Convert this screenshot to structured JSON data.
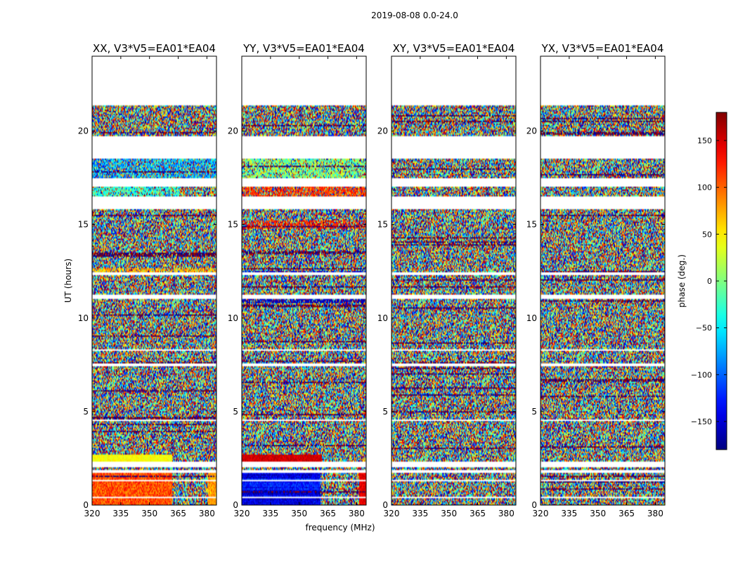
{
  "figure_title": "2019-08-08 0.0-24.0",
  "chart_data": [
    {
      "type": "heatmap",
      "title": "XX, V3*V5=EA01*EA04",
      "xlabel": "",
      "ylabel": "UT (hours)",
      "xlim": [
        320,
        385
      ],
      "ylim": [
        0,
        24
      ],
      "xticks": [
        320,
        335,
        350,
        365,
        380
      ],
      "yticks": [
        0,
        5,
        10,
        15,
        20
      ],
      "pattern": "xx"
    },
    {
      "type": "heatmap",
      "title": "YY, V3*V5=EA01*EA04",
      "xlabel": "frequency (MHz)",
      "ylabel": "",
      "xlim": [
        320,
        385
      ],
      "ylim": [
        0,
        24
      ],
      "xticks": [
        320,
        335,
        350,
        365,
        380
      ],
      "yticks": [
        0,
        5,
        10,
        15,
        20
      ],
      "pattern": "yy"
    },
    {
      "type": "heatmap",
      "title": "XY, V3*V5=EA01*EA04",
      "xlabel": "",
      "ylabel": "",
      "xlim": [
        320,
        385
      ],
      "ylim": [
        0,
        24
      ],
      "xticks": [
        320,
        335,
        350,
        365,
        380
      ],
      "yticks": [
        0,
        5,
        10,
        15,
        20
      ],
      "pattern": "noise"
    },
    {
      "type": "heatmap",
      "title": "YX, V3*V5=EA01*EA04",
      "xlabel": "",
      "ylabel": "",
      "xlim": [
        320,
        385
      ],
      "ylim": [
        0,
        24
      ],
      "xticks": [
        320,
        335,
        350,
        365,
        380
      ],
      "yticks": [
        0,
        5,
        10,
        15,
        20
      ],
      "pattern": "noise"
    }
  ],
  "colorbar": {
    "label": "phase (deg.)",
    "range": [
      -180,
      180
    ],
    "ticks": [
      -150,
      -100,
      -50,
      0,
      50,
      100,
      150
    ],
    "tick_labels": [
      "−150",
      "−100",
      "−50",
      "0",
      "50",
      "100",
      "150"
    ],
    "colormap": "jet"
  },
  "flagged_time_ranges_hours": [
    [
      21.4,
      24.0
    ],
    [
      19.45,
      19.75
    ],
    [
      18.55,
      19.45
    ],
    [
      17.05,
      17.5
    ],
    [
      15.85,
      16.5
    ],
    [
      12.3,
      12.45
    ],
    [
      11.05,
      11.25
    ],
    [
      8.25,
      8.35
    ],
    [
      7.45,
      7.55
    ],
    [
      4.5,
      4.6
    ],
    [
      2.05,
      2.3
    ],
    [
      1.75,
      1.85
    ],
    [
      1.3,
      1.38
    ],
    [
      0.35,
      0.42
    ]
  ]
}
